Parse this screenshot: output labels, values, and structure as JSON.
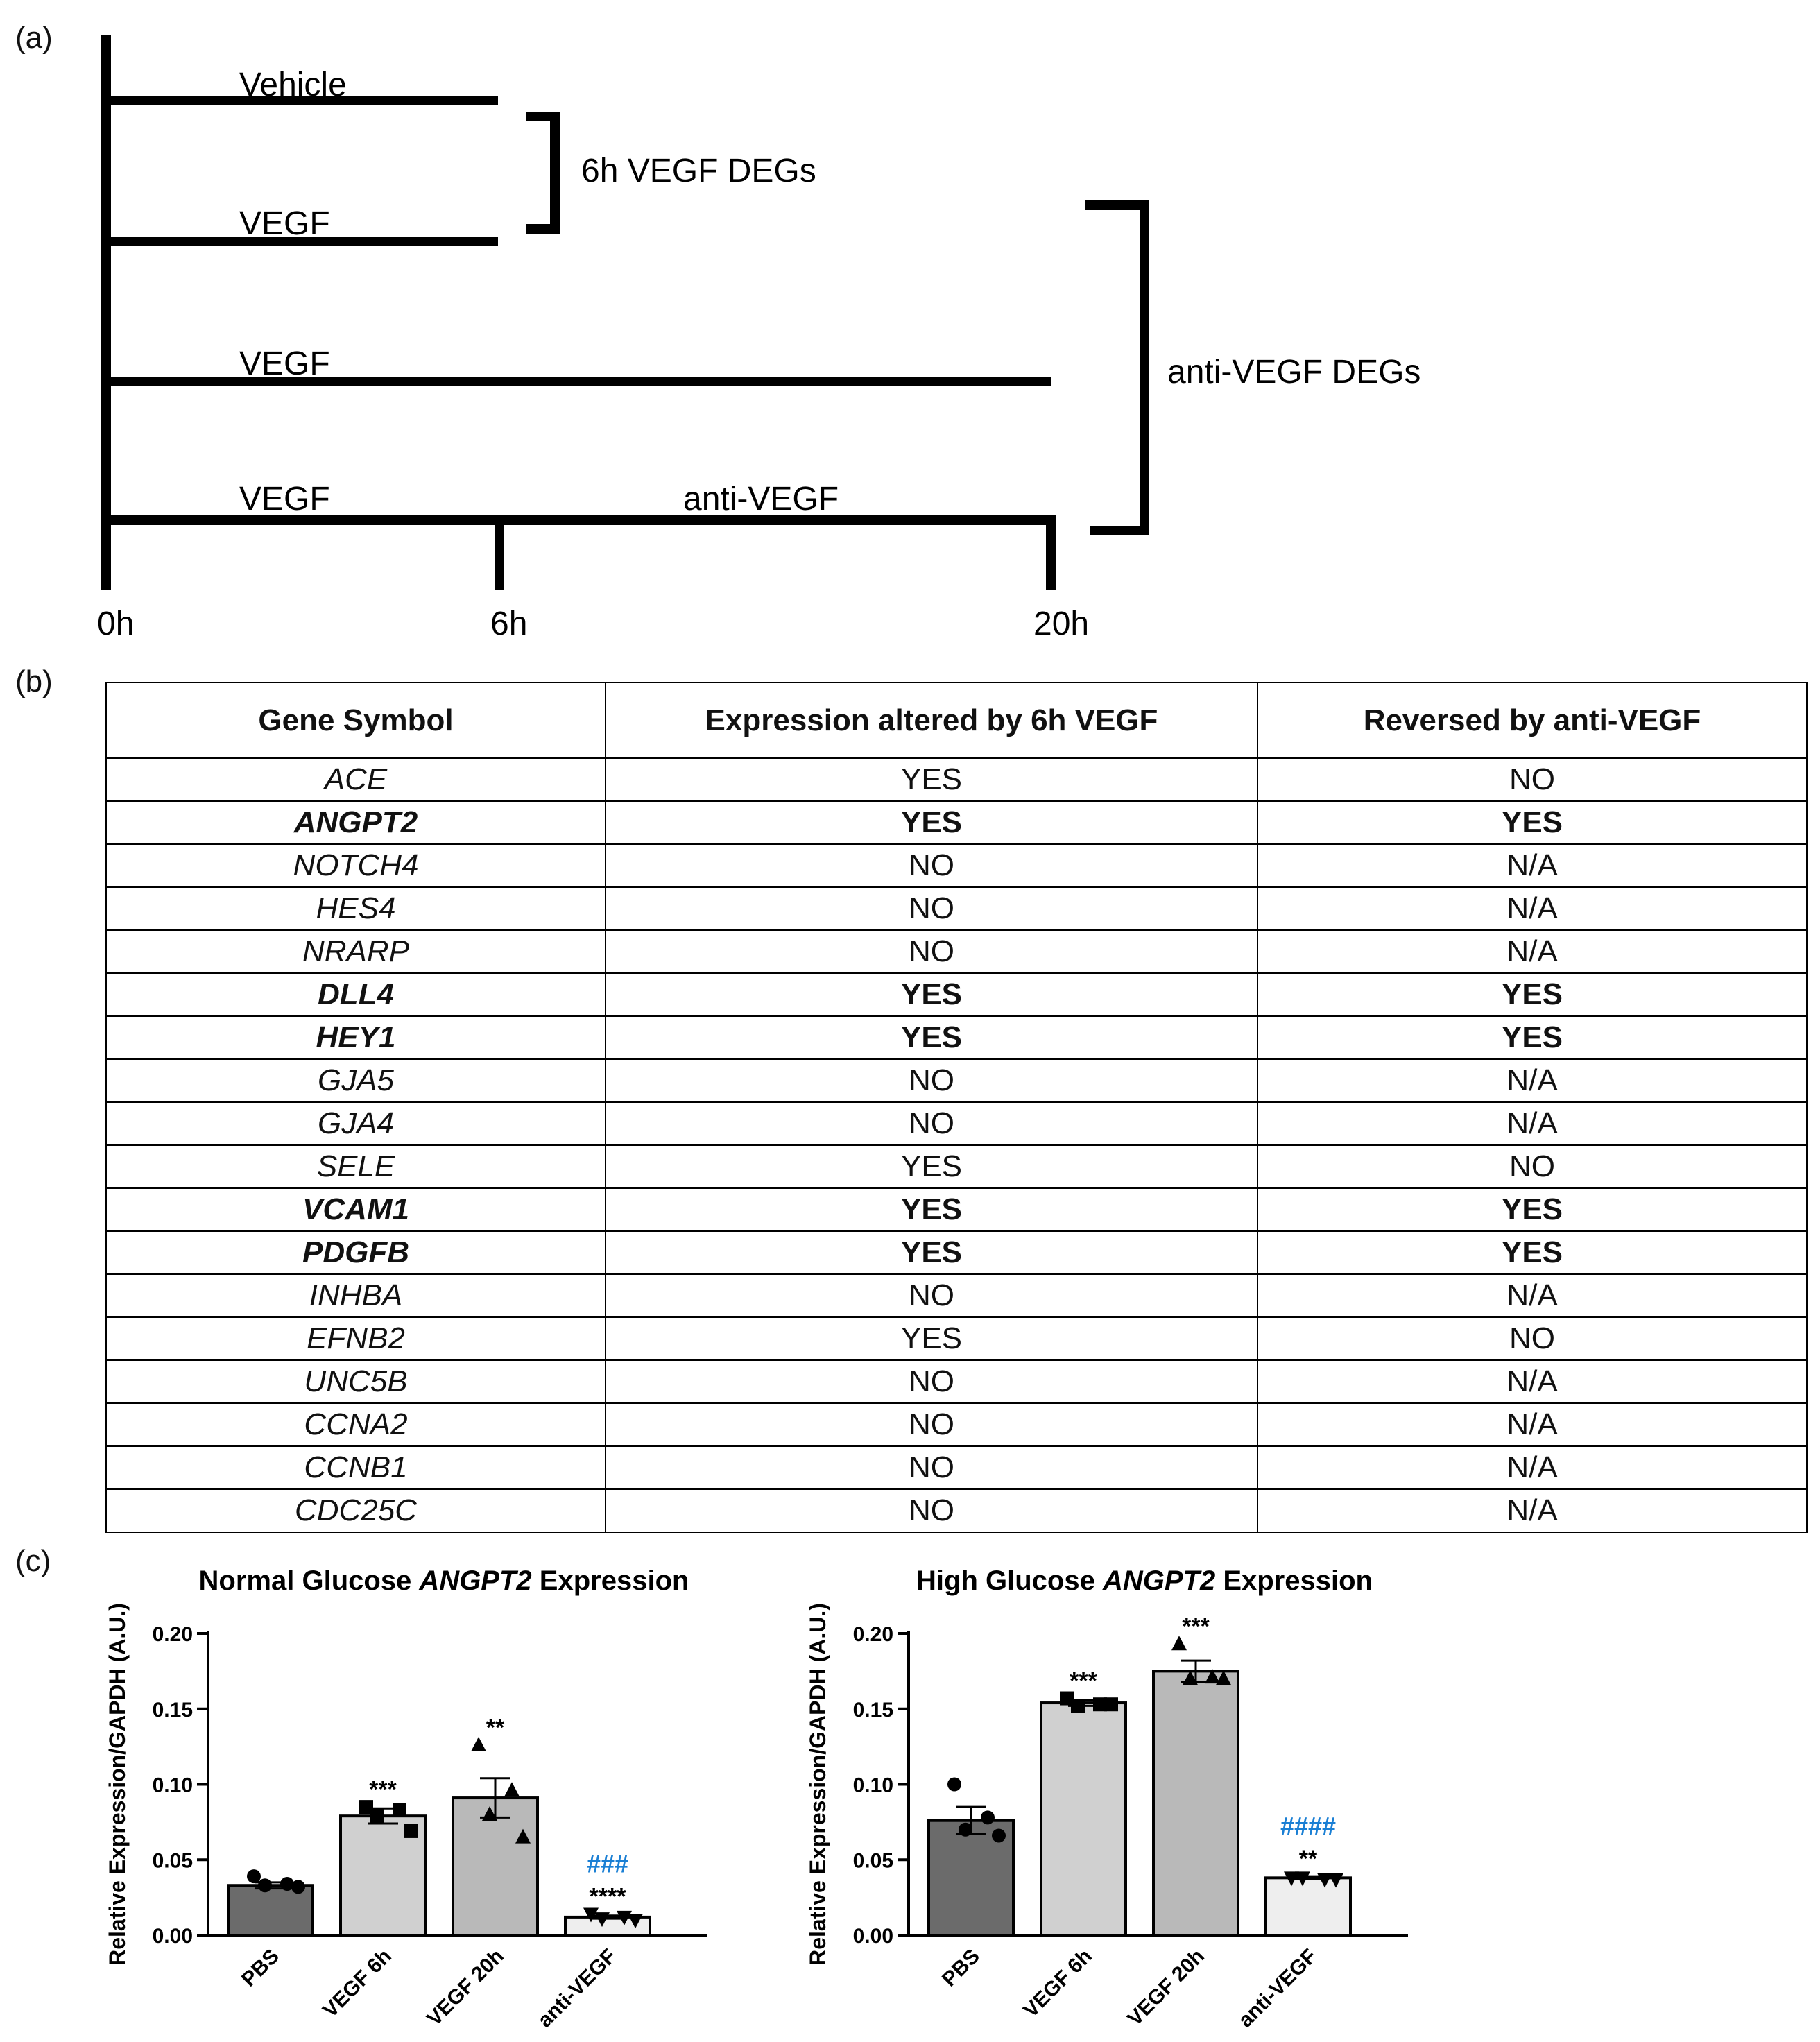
{
  "panel_labels": {
    "a": "(a)",
    "b": "(b)",
    "c": "(c)"
  },
  "timeline": {
    "groups": [
      {
        "segments": [
          "Vehicle"
        ]
      },
      {
        "segments": [
          "VEGF"
        ]
      },
      {
        "segments": [
          "VEGF"
        ]
      },
      {
        "segments": [
          "VEGF",
          "anti-VEGF"
        ]
      }
    ],
    "time_labels": [
      "0h",
      "6h",
      "20h"
    ],
    "bracket_6h": "6h VEGF DEGs",
    "bracket_anti": "anti-VEGF DEGs"
  },
  "table": {
    "headers": [
      "Gene Symbol",
      "Expression altered by 6h VEGF",
      "Reversed by anti-VEGF"
    ],
    "rows": [
      {
        "gene": "ACE",
        "altered": "YES",
        "reversed": "NO",
        "bold": false
      },
      {
        "gene": "ANGPT2",
        "altered": "YES",
        "reversed": "YES",
        "bold": true
      },
      {
        "gene": "NOTCH4",
        "altered": "NO",
        "reversed": "N/A",
        "bold": false
      },
      {
        "gene": "HES4",
        "altered": "NO",
        "reversed": "N/A",
        "bold": false
      },
      {
        "gene": "NRARP",
        "altered": "NO",
        "reversed": "N/A",
        "bold": false
      },
      {
        "gene": "DLL4",
        "altered": "YES",
        "reversed": "YES",
        "bold": true
      },
      {
        "gene": "HEY1",
        "altered": "YES",
        "reversed": "YES",
        "bold": true
      },
      {
        "gene": "GJA5",
        "altered": "NO",
        "reversed": "N/A",
        "bold": false
      },
      {
        "gene": "GJA4",
        "altered": "NO",
        "reversed": "N/A",
        "bold": false
      },
      {
        "gene": "SELE",
        "altered": "YES",
        "reversed": "NO",
        "bold": false
      },
      {
        "gene": "VCAM1",
        "altered": "YES",
        "reversed": "YES",
        "bold": true
      },
      {
        "gene": "PDGFB",
        "altered": "YES",
        "reversed": "YES",
        "bold": true
      },
      {
        "gene": "INHBA",
        "altered": "NO",
        "reversed": "N/A",
        "bold": false
      },
      {
        "gene": "EFNB2",
        "altered": "YES",
        "reversed": "NO",
        "bold": false
      },
      {
        "gene": "UNC5B",
        "altered": "NO",
        "reversed": "N/A",
        "bold": false
      },
      {
        "gene": "CCNA2",
        "altered": "NO",
        "reversed": "N/A",
        "bold": false
      },
      {
        "gene": "CCNB1",
        "altered": "NO",
        "reversed": "N/A",
        "bold": false
      },
      {
        "gene": "CDC25C",
        "altered": "NO",
        "reversed": "N/A",
        "bold": false
      }
    ]
  },
  "chart_data": [
    {
      "type": "bar",
      "title_prefix": "Normal Glucose ",
      "title_gene": "ANGPT2",
      "title_suffix": " Expression",
      "ylabel": "Relative Expression/GAPDH (A.U.)",
      "ylim": [
        0,
        0.2
      ],
      "yticks": [
        "0.00",
        "0.05",
        "0.10",
        "0.15",
        "0.20"
      ],
      "categories": [
        "PBS",
        "VEGF 6h",
        "VEGF 20h",
        "anti-VEGF"
      ],
      "values": [
        0.033,
        0.079,
        0.091,
        0.012
      ],
      "errors": [
        0.002,
        0.005,
        0.013,
        0.001
      ],
      "points": [
        [
          0.039,
          0.034,
          0.033,
          0.032
        ],
        [
          0.085,
          0.083,
          0.079,
          0.069
        ],
        [
          0.126,
          0.096,
          0.08,
          0.065
        ],
        [
          0.014,
          0.012,
          0.011,
          0.01
        ]
      ],
      "markers": [
        "circle",
        "square",
        "triangle",
        "triangle-down"
      ],
      "colors": [
        "#6b6b6b",
        "#d0d0d0",
        "#b9b9b9",
        "#eeeeee"
      ],
      "sig": [
        "",
        "***",
        "**",
        "****"
      ],
      "sig_hash": [
        "",
        "",
        "",
        "###"
      ],
      "hash_color": "#1a7fd4"
    },
    {
      "type": "bar",
      "title_prefix": "High Glucose ",
      "title_gene": "ANGPT2",
      "title_suffix": " Expression",
      "ylabel": "Relative Expression/GAPDH (A.U.)",
      "ylim": [
        0,
        0.2
      ],
      "yticks": [
        "0.00",
        "0.05",
        "0.10",
        "0.15",
        "0.20"
      ],
      "categories": [
        "PBS",
        "VEGF 6h",
        "VEGF 20h",
        "anti-VEGF"
      ],
      "values": [
        0.076,
        0.154,
        0.175,
        0.038
      ],
      "errors": [
        0.009,
        0.002,
        0.007,
        0.001
      ],
      "points": [
        [
          0.1,
          0.078,
          0.07,
          0.066
        ],
        [
          0.157,
          0.153,
          0.152,
          0.153
        ],
        [
          0.193,
          0.171,
          0.17,
          0.17
        ],
        [
          0.038,
          0.037,
          0.038,
          0.037
        ]
      ],
      "markers": [
        "circle",
        "square",
        "triangle",
        "triangle-down"
      ],
      "colors": [
        "#6b6b6b",
        "#d0d0d0",
        "#b9b9b9",
        "#eeeeee"
      ],
      "sig": [
        "",
        "***",
        "***",
        "**"
      ],
      "sig_hash": [
        "",
        "",
        "",
        "####"
      ],
      "hash_color": "#1a7fd4"
    }
  ]
}
